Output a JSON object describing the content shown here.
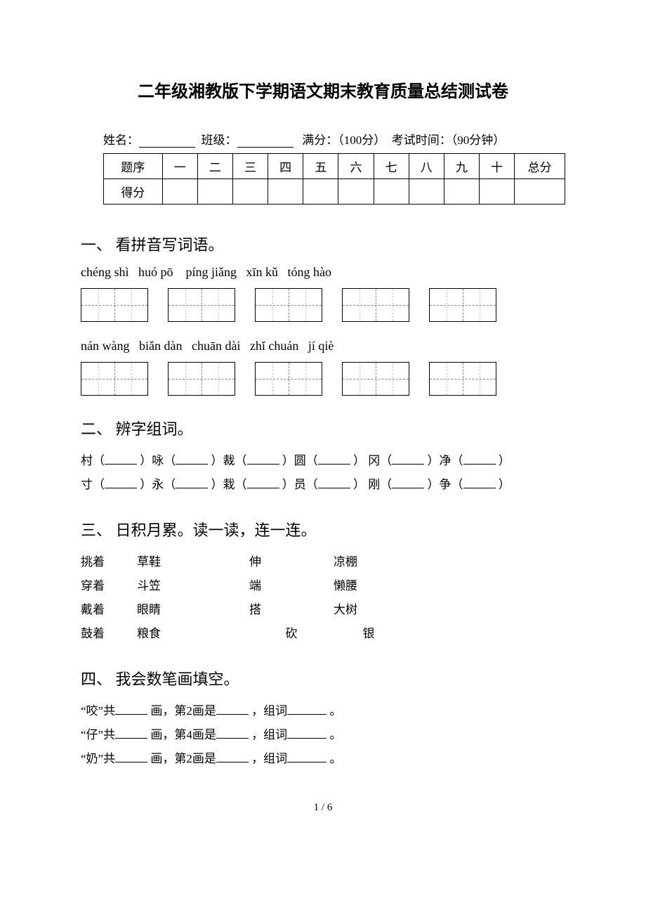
{
  "title": "二年级湘教版下学期语文期末教育质量总结测试卷",
  "info": {
    "name_label": "姓名：",
    "class_label": "班级：",
    "full_label": "满分：（100分）",
    "time_label": "考试时间：（90分钟）"
  },
  "score_table": {
    "row1_label": "题序",
    "cols": [
      "一",
      "二",
      "三",
      "四",
      "五",
      "六",
      "七",
      "八",
      "九",
      "十",
      "总分"
    ],
    "row2_label": "得分"
  },
  "section1": {
    "heading": "一、 看拼音写词语。",
    "pinyin_row1": [
      "chéng shì",
      "huó pō",
      "píng jiǎng",
      "xīn kǔ",
      "tóng hào"
    ],
    "pinyin_row2": [
      "nán wàng",
      "biǎn dàn",
      "chuān dài",
      "zhǐ chuán",
      "jí qiè"
    ]
  },
  "section2": {
    "heading": "二、 辨字组词。",
    "line1": [
      "村（",
      "）咏（",
      "）裁（",
      "）圆（",
      "） 冈（",
      "）净（",
      "）"
    ],
    "line2": [
      "寸（",
      "）永（",
      "）栽（",
      "）员（",
      "） 刚（",
      "）争（",
      "）"
    ]
  },
  "section3": {
    "heading": "三、 日积月累。读一读，连一连。",
    "rows": [
      {
        "a": "挑着",
        "b": "草鞋",
        "c": "伸",
        "d": "凉棚"
      },
      {
        "a": "穿着",
        "b": "斗笠",
        "c": "端",
        "d": "懒腰"
      },
      {
        "a": "戴着",
        "b": "眼睛",
        "c": "搭",
        "d": "大树"
      },
      {
        "a": "鼓着",
        "b": "粮食",
        "c": "砍",
        "d": "银"
      }
    ]
  },
  "section4": {
    "heading": "四、 我会数笔画填空。",
    "lines": [
      {
        "pre": "“咬”共",
        "mid1": "画，第2画是",
        "mid2": "，组词",
        "end": "。"
      },
      {
        "pre": "“仔”共",
        "mid1": "画，第4画是",
        "mid2": "，组词",
        "end": "。"
      },
      {
        "pre": "“奶”共",
        "mid1": "画，第2画是",
        "mid2": "，组词",
        "end": "。"
      }
    ]
  },
  "page_number": "1 / 6"
}
